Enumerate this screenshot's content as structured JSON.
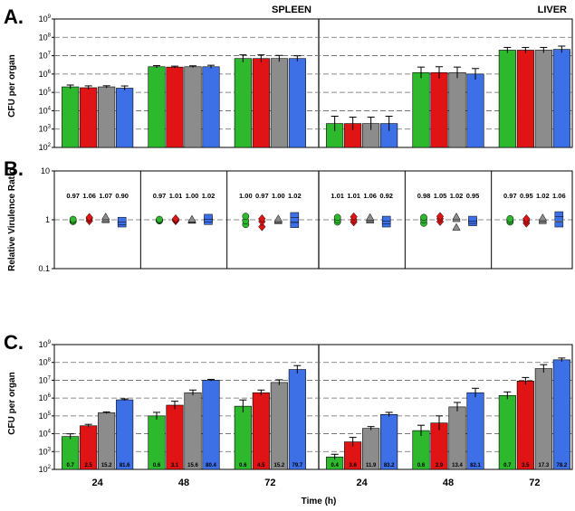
{
  "figure": {
    "panel_labels": [
      "A.",
      "B.",
      "C."
    ],
    "organs": [
      "SPLEEN",
      "LIVER"
    ],
    "xlabel": "Time (h)",
    "ylabel_cfu": "CFU per organ",
    "ylabel_rvr": "Relative Virulence Ratio",
    "time_points": [
      "24",
      "48",
      "72"
    ],
    "colors": {
      "green": "#2eb82e",
      "red": "#e01414",
      "gray": "#8c8c8c",
      "blue": "#3d6fe6"
    }
  },
  "chart_data": [
    {
      "type": "bar",
      "panel": "A.",
      "ylabel": "CFU per organ",
      "yscale": "log",
      "ylim": [
        100,
        1000000000
      ],
      "yticks": [
        "10^2",
        "10^3",
        "10^4",
        "10^5",
        "10^6",
        "10^7",
        "10^8",
        "10^9"
      ],
      "facets": [
        {
          "organ": "SPLEEN",
          "categories": [
            "24",
            "48",
            "72"
          ],
          "values": [
            [
              200000,
              180000,
              200000,
              170000
            ],
            [
              2500000,
              2400000,
              2500000,
              2500000
            ],
            [
              7000000,
              7000000,
              7000000,
              7000000
            ]
          ],
          "errors": [
            [
              0.1,
              0.1,
              0.06,
              0.12
            ],
            [
              0.06,
              0.05,
              0.05,
              0.08
            ],
            [
              0.2,
              0.2,
              0.17,
              0.15
            ]
          ]
        },
        {
          "organ": "LIVER",
          "categories": [
            "24",
            "48",
            "72"
          ],
          "values": [
            [
              2000,
              2000,
              2000,
              2000
            ],
            [
              1200000,
              1200000,
              1200000,
              1000000
            ],
            [
              20000000,
              20000000,
              20000000,
              22000000
            ]
          ],
          "errors": [
            [
              0.4,
              0.35,
              0.35,
              0.4
            ],
            [
              0.3,
              0.32,
              0.3,
              0.3
            ],
            [
              0.15,
              0.15,
              0.15,
              0.18
            ]
          ]
        }
      ]
    },
    {
      "type": "scatter",
      "panel": "B.",
      "ylabel": "Relative Virulence Ratio",
      "yscale": "log",
      "ylim": [
        0.1,
        10
      ],
      "yticks": [
        "0.1",
        "1",
        "10"
      ],
      "facets": [
        {
          "organ": "SPLEEN",
          "groups": [
            {
              "time": "24",
              "ratios": [
                "0.97",
                "1.06",
                "1.07",
                "0.90"
              ],
              "points": [
                [
                  0.92,
                  0.97,
                  1.02
                ],
                [
                  0.95,
                  1.05,
                  1.12
                ],
                [
                  1.0,
                  1.05,
                  1.15
                ],
                [
                  0.8,
                  0.9,
                  1.0
                ]
              ]
            },
            {
              "time": "48",
              "ratios": [
                "0.97",
                "1.01",
                "1.00",
                "1.02"
              ],
              "points": [
                [
                  0.95,
                  0.98,
                  1.02
                ],
                [
                  0.95,
                  1.0,
                  1.05
                ],
                [
                  0.97,
                  1.0,
                  1.03
                ],
                [
                  0.9,
                  1.02,
                  1.15
                ]
              ]
            },
            {
              "time": "72",
              "ratios": [
                "1.00",
                "0.97",
                "1.00",
                "1.02"
              ],
              "points": [
                [
                  0.8,
                  0.95,
                  1.18
                ],
                [
                  0.72,
                  0.92,
                  1.05
                ],
                [
                  0.95,
                  1.0,
                  1.05
                ],
                [
                  0.78,
                  1.0,
                  1.25
                ]
              ]
            }
          ]
        },
        {
          "organ": "LIVER",
          "groups": [
            {
              "time": "24",
              "ratios": [
                "1.01",
                "1.01",
                "1.06",
                "0.92"
              ],
              "points": [
                [
                  0.9,
                  1.0,
                  1.12
                ],
                [
                  0.9,
                  1.0,
                  1.15
                ],
                [
                  0.98,
                  1.05,
                  1.12
                ],
                [
                  0.8,
                  0.92,
                  1.05
                ]
              ]
            },
            {
              "time": "48",
              "ratios": [
                "0.98",
                "1.05",
                "1.02",
                "0.95"
              ],
              "points": [
                [
                  0.85,
                  1.0,
                  1.12
                ],
                [
                  0.92,
                  1.05,
                  1.17
                ],
                [
                  0.7,
                  1.05,
                  1.15
                ],
                [
                  0.85,
                  0.95,
                  1.05
                ]
              ]
            },
            {
              "time": "72",
              "ratios": [
                "0.97",
                "0.95",
                "1.02",
                "1.06"
              ],
              "points": [
                [
                  0.9,
                  0.97,
                  1.05
                ],
                [
                  0.85,
                  0.95,
                  1.05
                ],
                [
                  0.95,
                  1.02,
                  1.1
                ],
                [
                  0.8,
                  1.06,
                  1.3
                ]
              ]
            }
          ]
        }
      ]
    },
    {
      "type": "bar",
      "panel": "C.",
      "ylabel": "CFU per organ",
      "xlabel": "Time (h)",
      "yscale": "log",
      "ylim": [
        100,
        1000000000
      ],
      "yticks": [
        "10^2",
        "10^3",
        "10^4",
        "10^5",
        "10^6",
        "10^7",
        "10^8",
        "10^9"
      ],
      "facets": [
        {
          "organ": "SPLEEN",
          "categories": [
            "24",
            "48",
            "72"
          ],
          "values": [
            [
              7000,
              28000,
              150000,
              800000
            ],
            [
              100000,
              400000,
              2000000,
              10000000
            ],
            [
              350000,
              2000000,
              7500000,
              40000000
            ]
          ],
          "errors": [
            [
              0.15,
              0.08,
              0.05,
              0.05
            ],
            [
              0.2,
              0.22,
              0.15,
              0.05
            ],
            [
              0.35,
              0.15,
              0.15,
              0.22
            ]
          ],
          "labels": [
            [
              "0.7",
              "2.5",
              "15.2",
              "81.6"
            ],
            [
              "0.6",
              "3.1",
              "15.6",
              "80.4"
            ],
            [
              "0.6",
              "4.5",
              "15.2",
              "79.7"
            ]
          ]
        },
        {
          "organ": "LIVER",
          "categories": [
            "24",
            "48",
            "72"
          ],
          "values": [
            [
              500,
              3500,
              20000,
              120000
            ],
            [
              15000,
              40000,
              320000,
              2000000
            ],
            [
              1400000,
              9000000,
              45000000,
              140000000
            ]
          ],
          "errors": [
            [
              0.15,
              0.25,
              0.1,
              0.12
            ],
            [
              0.3,
              0.4,
              0.25,
              0.25
            ],
            [
              0.2,
              0.2,
              0.22,
              0.1
            ]
          ],
          "labels": [
            [
              "0.4",
              "3.6",
              "11.9",
              "83.2"
            ],
            [
              "0.6",
              "2.9",
              "13.4",
              "82.1"
            ],
            [
              "0.7",
              "3.5",
              "17.3",
              "78.2"
            ]
          ]
        }
      ]
    }
  ]
}
